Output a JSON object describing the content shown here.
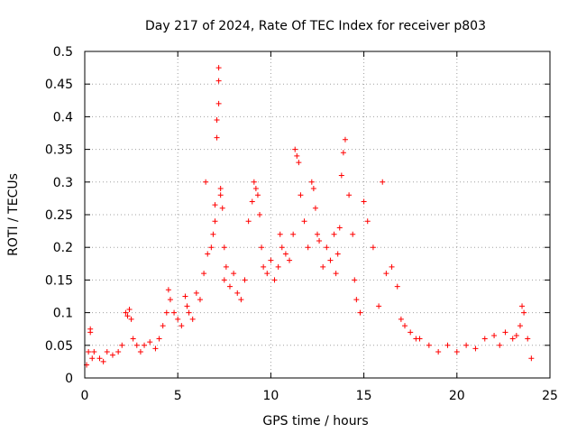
{
  "chart_data": {
    "type": "scatter",
    "title": "Day 217 of 2024, Rate Of TEC Index for receiver p803",
    "xlabel": "GPS time / hours",
    "ylabel": "ROTI / TECUs",
    "xlim": [
      0,
      25
    ],
    "ylim": [
      0,
      0.5
    ],
    "xticks": [
      0,
      5,
      10,
      15,
      20,
      25
    ],
    "xtick_labels": [
      "0",
      "5",
      "10",
      "15",
      "20",
      "25"
    ],
    "yticks": [
      0,
      0.05,
      0.1,
      0.15,
      0.2,
      0.25,
      0.3,
      0.35,
      0.4,
      0.45,
      0.5
    ],
    "ytick_labels": [
      "0",
      "0.05",
      "0.1",
      "0.15",
      "0.2",
      "0.25",
      "0.3",
      "0.35",
      "0.4",
      "0.45",
      "0.5"
    ],
    "grid": true,
    "marker": "+",
    "color": "#ff0000",
    "series": [
      {
        "x": [
          0.1,
          0.2,
          0.3,
          0.3,
          0.4,
          0.5,
          0.8,
          1.0,
          1.2,
          1.5,
          1.8,
          2.0,
          2.2,
          2.3,
          2.4,
          2.5,
          2.6,
          2.8,
          3.0,
          3.2,
          3.5,
          3.8,
          4.0,
          4.2,
          4.4,
          4.5,
          4.6,
          4.8,
          5.0,
          5.2,
          5.4,
          5.5,
          5.6,
          5.8,
          6.0,
          6.2,
          6.4,
          6.5,
          6.6,
          6.8,
          6.9,
          7.0,
          7.0,
          7.1,
          7.1,
          7.2,
          7.2,
          7.2,
          7.3,
          7.3,
          7.4,
          7.5,
          7.5,
          7.6,
          7.8,
          8.0,
          8.2,
          8.4,
          8.6,
          8.8,
          9.0,
          9.1,
          9.2,
          9.3,
          9.4,
          9.5,
          9.6,
          9.8,
          10.0,
          10.2,
          10.4,
          10.5,
          10.6,
          10.8,
          11.0,
          11.2,
          11.3,
          11.4,
          11.5,
          11.6,
          11.8,
          12.0,
          12.2,
          12.3,
          12.4,
          12.5,
          12.6,
          12.8,
          13.0,
          13.2,
          13.4,
          13.5,
          13.6,
          13.7,
          13.8,
          13.9,
          14.0,
          14.2,
          14.4,
          14.5,
          14.6,
          14.8,
          15.0,
          15.2,
          15.5,
          15.8,
          16.0,
          16.2,
          16.5,
          16.8,
          17.0,
          17.2,
          17.5,
          17.8,
          18.0,
          18.5,
          19.0,
          19.5,
          20.0,
          20.5,
          21.0,
          21.5,
          22.0,
          22.3,
          22.6,
          23.0,
          23.2,
          23.4,
          23.5,
          23.6,
          23.8,
          24.0
        ],
        "y": [
          0.02,
          0.04,
          0.075,
          0.07,
          0.03,
          0.04,
          0.03,
          0.025,
          0.04,
          0.035,
          0.04,
          0.05,
          0.1,
          0.095,
          0.105,
          0.09,
          0.06,
          0.05,
          0.04,
          0.05,
          0.055,
          0.045,
          0.06,
          0.08,
          0.1,
          0.135,
          0.12,
          0.1,
          0.09,
          0.08,
          0.125,
          0.11,
          0.1,
          0.09,
          0.13,
          0.12,
          0.16,
          0.3,
          0.19,
          0.2,
          0.22,
          0.24,
          0.265,
          0.368,
          0.395,
          0.42,
          0.455,
          0.475,
          0.29,
          0.28,
          0.26,
          0.2,
          0.15,
          0.17,
          0.14,
          0.16,
          0.13,
          0.12,
          0.15,
          0.24,
          0.27,
          0.3,
          0.29,
          0.28,
          0.25,
          0.2,
          0.17,
          0.16,
          0.18,
          0.15,
          0.17,
          0.22,
          0.2,
          0.19,
          0.18,
          0.22,
          0.35,
          0.34,
          0.33,
          0.28,
          0.24,
          0.2,
          0.3,
          0.29,
          0.26,
          0.22,
          0.21,
          0.17,
          0.2,
          0.18,
          0.22,
          0.16,
          0.19,
          0.23,
          0.31,
          0.345,
          0.365,
          0.28,
          0.22,
          0.15,
          0.12,
          0.1,
          0.27,
          0.24,
          0.2,
          0.11,
          0.3,
          0.16,
          0.17,
          0.14,
          0.09,
          0.08,
          0.07,
          0.06,
          0.06,
          0.05,
          0.04,
          0.05,
          0.04,
          0.05,
          0.045,
          0.06,
          0.065,
          0.05,
          0.07,
          0.06,
          0.065,
          0.08,
          0.11,
          0.1,
          0.06,
          0.03
        ]
      }
    ]
  }
}
